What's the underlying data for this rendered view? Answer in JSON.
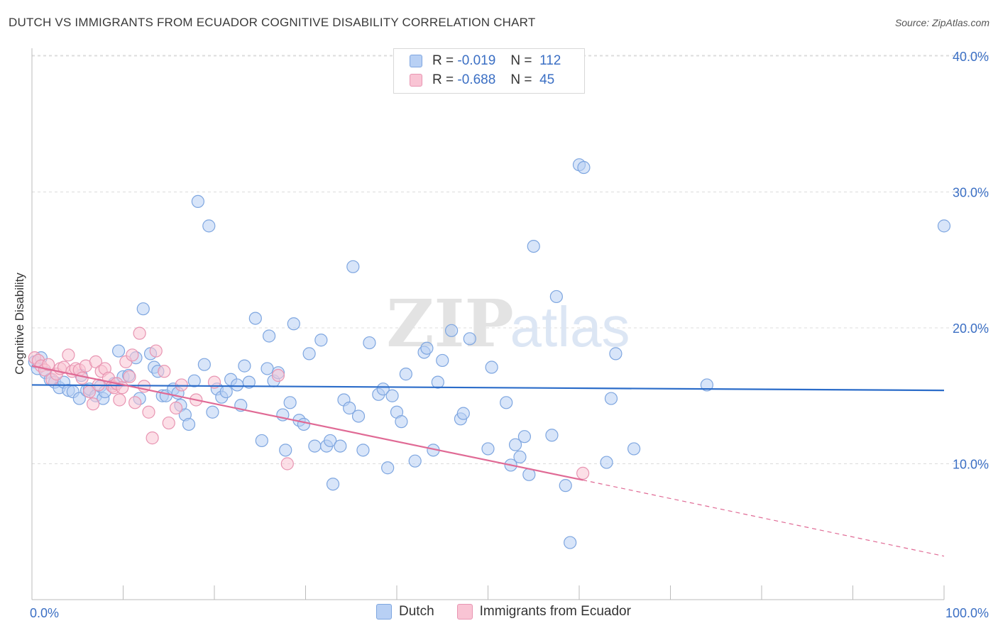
{
  "chart_data": {
    "type": "scatter",
    "title": "DUTCH VS IMMIGRANTS FROM ECUADOR COGNITIVE DISABILITY CORRELATION CHART",
    "source": "Source: ZipAtlas.com",
    "ylabel": "Cognitive Disability",
    "xlim": [
      0,
      100
    ],
    "ylim": [
      0,
      42
    ],
    "x_tick_labels": [
      "0.0%",
      "100.0%"
    ],
    "y_ticks": [
      10,
      20,
      30,
      40
    ],
    "y_tick_labels": [
      "10.0%",
      "20.0%",
      "30.0%",
      "40.0%"
    ],
    "grid": true,
    "watermark": "ZIPatlas",
    "legend": {
      "placement": "top-center",
      "rows": [
        {
          "r_label": "R =",
          "r_value": "-0.019",
          "n_label": "N =",
          "n_value": "112"
        },
        {
          "r_label": "R =",
          "r_value": "-0.688",
          "n_label": "N =",
          "n_value": "45"
        }
      ]
    },
    "series": [
      {
        "name": "Dutch",
        "color": "#7ea6e0",
        "fill": "#b8d0f4",
        "trend": {
          "x": [
            0,
            100
          ],
          "y": [
            15.8,
            15.4
          ],
          "color": "#2b6cc9"
        },
        "points": [
          [
            0.3,
            17.5
          ],
          [
            0.6,
            17.0
          ],
          [
            1.0,
            17.8
          ],
          [
            1.5,
            16.7
          ],
          [
            2.0,
            16.2
          ],
          [
            2.5,
            16.0
          ],
          [
            3.0,
            15.6
          ],
          [
            3.5,
            16.0
          ],
          [
            4.0,
            15.4
          ],
          [
            4.5,
            15.3
          ],
          [
            5.2,
            14.8
          ],
          [
            5.4,
            16.5
          ],
          [
            6.0,
            15.4
          ],
          [
            6.3,
            15.5
          ],
          [
            7.0,
            15.0
          ],
          [
            7.5,
            15.7
          ],
          [
            7.8,
            14.8
          ],
          [
            8.0,
            15.3
          ],
          [
            9.0,
            15.9
          ],
          [
            9.5,
            18.3
          ],
          [
            10.0,
            16.4
          ],
          [
            10.6,
            16.5
          ],
          [
            11.4,
            17.8
          ],
          [
            11.8,
            14.8
          ],
          [
            12.2,
            21.4
          ],
          [
            13.0,
            18.1
          ],
          [
            13.4,
            17.1
          ],
          [
            13.8,
            16.8
          ],
          [
            14.3,
            15.0
          ],
          [
            14.7,
            15.0
          ],
          [
            15.5,
            15.5
          ],
          [
            16.0,
            15.2
          ],
          [
            16.3,
            14.3
          ],
          [
            16.8,
            13.6
          ],
          [
            17.2,
            12.9
          ],
          [
            17.8,
            16.1
          ],
          [
            18.2,
            29.3
          ],
          [
            18.9,
            17.3
          ],
          [
            19.4,
            27.5
          ],
          [
            19.8,
            13.8
          ],
          [
            20.3,
            15.5
          ],
          [
            20.8,
            14.9
          ],
          [
            21.3,
            15.3
          ],
          [
            21.8,
            16.2
          ],
          [
            22.5,
            15.8
          ],
          [
            22.9,
            14.3
          ],
          [
            23.3,
            17.2
          ],
          [
            23.8,
            16.0
          ],
          [
            24.5,
            20.7
          ],
          [
            25.2,
            11.7
          ],
          [
            25.8,
            17.0
          ],
          [
            26.0,
            19.4
          ],
          [
            26.5,
            16.1
          ],
          [
            27.0,
            16.7
          ],
          [
            27.5,
            13.6
          ],
          [
            27.8,
            11.0
          ],
          [
            28.3,
            14.5
          ],
          [
            28.7,
            20.3
          ],
          [
            29.3,
            13.2
          ],
          [
            29.8,
            12.9
          ],
          [
            30.4,
            18.1
          ],
          [
            31.0,
            11.3
          ],
          [
            31.7,
            19.1
          ],
          [
            32.3,
            11.3
          ],
          [
            32.7,
            11.7
          ],
          [
            33.0,
            8.5
          ],
          [
            33.8,
            11.3
          ],
          [
            34.2,
            14.7
          ],
          [
            34.8,
            14.1
          ],
          [
            35.2,
            24.5
          ],
          [
            35.8,
            13.5
          ],
          [
            36.3,
            11.0
          ],
          [
            37.0,
            18.9
          ],
          [
            38.0,
            15.1
          ],
          [
            38.5,
            15.5
          ],
          [
            39.0,
            9.7
          ],
          [
            39.5,
            15.0
          ],
          [
            40.0,
            13.8
          ],
          [
            40.5,
            13.1
          ],
          [
            41.0,
            16.6
          ],
          [
            42.0,
            10.2
          ],
          [
            43.0,
            18.2
          ],
          [
            43.3,
            18.5
          ],
          [
            44.0,
            11.0
          ],
          [
            44.5,
            16.0
          ],
          [
            45.0,
            17.6
          ],
          [
            46.0,
            19.8
          ],
          [
            47.0,
            13.3
          ],
          [
            47.3,
            13.7
          ],
          [
            48.0,
            19.2
          ],
          [
            50.0,
            11.1
          ],
          [
            50.4,
            17.1
          ],
          [
            52.0,
            14.5
          ],
          [
            52.5,
            9.9
          ],
          [
            53.0,
            11.4
          ],
          [
            53.5,
            10.5
          ],
          [
            54.0,
            12.0
          ],
          [
            54.5,
            9.2
          ],
          [
            55.0,
            26.0
          ],
          [
            57.0,
            12.1
          ],
          [
            57.5,
            22.3
          ],
          [
            58.5,
            8.4
          ],
          [
            59.0,
            4.2
          ],
          [
            60.0,
            32.0
          ],
          [
            60.5,
            31.8
          ],
          [
            63.0,
            10.1
          ],
          [
            63.5,
            14.8
          ],
          [
            64.0,
            18.1
          ],
          [
            66.0,
            11.1
          ],
          [
            74.0,
            15.8
          ],
          [
            100.0,
            27.5
          ]
        ]
      },
      {
        "name": "Immigrants from Ecuador",
        "color": "#e895b2",
        "fill": "#f9c4d4",
        "trend": {
          "x": [
            0,
            60.4
          ],
          "y": [
            17.2,
            8.8
          ],
          "color": "#e06a95"
        },
        "trend_extension": {
          "x": [
            60.4,
            100
          ],
          "y": [
            8.8,
            3.2
          ]
        },
        "points": [
          [
            0.3,
            17.8
          ],
          [
            0.7,
            17.6
          ],
          [
            1.0,
            17.2
          ],
          [
            1.4,
            16.9
          ],
          [
            1.8,
            17.3
          ],
          [
            2.2,
            16.2
          ],
          [
            2.7,
            16.6
          ],
          [
            3.1,
            17.0
          ],
          [
            3.5,
            17.1
          ],
          [
            4.0,
            18.0
          ],
          [
            4.4,
            16.8
          ],
          [
            4.8,
            17.0
          ],
          [
            5.2,
            16.9
          ],
          [
            5.5,
            16.3
          ],
          [
            5.9,
            17.2
          ],
          [
            6.3,
            15.3
          ],
          [
            6.7,
            14.4
          ],
          [
            7.0,
            17.5
          ],
          [
            7.3,
            15.8
          ],
          [
            7.6,
            16.8
          ],
          [
            8.0,
            17.0
          ],
          [
            8.4,
            16.3
          ],
          [
            8.8,
            15.7
          ],
          [
            9.0,
            15.6
          ],
          [
            9.3,
            15.9
          ],
          [
            9.6,
            14.7
          ],
          [
            9.9,
            15.6
          ],
          [
            10.3,
            17.5
          ],
          [
            10.7,
            16.4
          ],
          [
            11.0,
            18.0
          ],
          [
            11.3,
            14.5
          ],
          [
            11.8,
            19.6
          ],
          [
            12.3,
            15.7
          ],
          [
            12.8,
            13.8
          ],
          [
            13.2,
            11.9
          ],
          [
            13.6,
            18.3
          ],
          [
            14.5,
            16.8
          ],
          [
            15.0,
            13.0
          ],
          [
            15.8,
            14.1
          ],
          [
            16.4,
            15.8
          ],
          [
            18.0,
            14.7
          ],
          [
            20.0,
            16.0
          ],
          [
            27.0,
            16.5
          ],
          [
            28.0,
            10.0
          ],
          [
            60.4,
            9.3
          ]
        ]
      }
    ]
  }
}
